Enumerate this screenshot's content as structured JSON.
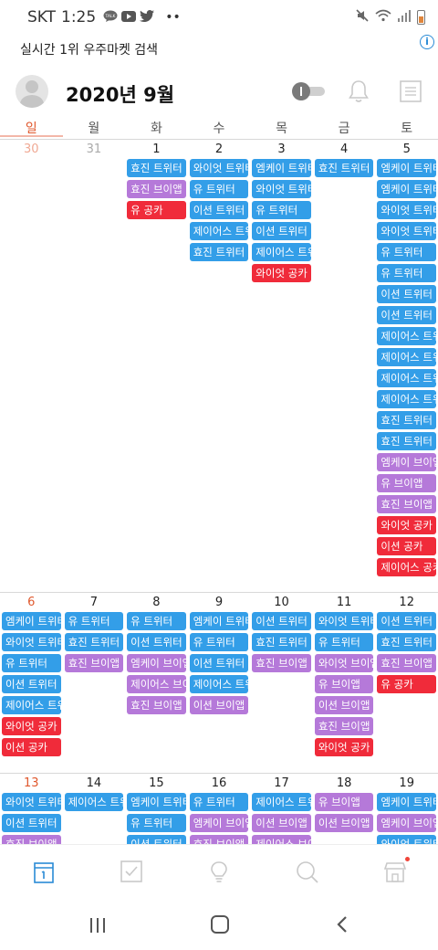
{
  "status_bar": {
    "carrier": "SKT",
    "time": "1:25",
    "talk_label": "TALK"
  },
  "banner": {
    "text": "실시간 1위 우주마켓 검색",
    "info_label": "i"
  },
  "header": {
    "month_title": "2020년 9월",
    "chevron": "⌄"
  },
  "weekdays": [
    "일",
    "월",
    "화",
    "수",
    "목",
    "금",
    "토"
  ],
  "colors": {
    "blue": "#339ee8",
    "purple": "#b579d9",
    "red": "#f02b3a",
    "sunday": "#e0582d"
  },
  "weeks": [
    {
      "days": [
        {
          "num": "30",
          "muted": true,
          "events": []
        },
        {
          "num": "31",
          "muted": true,
          "events": []
        },
        {
          "num": "1",
          "events": [
            {
              "title": "효진 트위터",
              "color": "blue"
            },
            {
              "title": "효진 브이앱",
              "color": "purple"
            },
            {
              "title": "유 공카",
              "color": "red"
            }
          ]
        },
        {
          "num": "2",
          "events": [
            {
              "title": "와이엇 트위터",
              "color": "blue"
            },
            {
              "title": "유 트위터",
              "color": "blue"
            },
            {
              "title": "이션 트위터",
              "color": "blue"
            },
            {
              "title": "제이어스 트위터",
              "color": "blue"
            },
            {
              "title": "효진 트위터",
              "color": "blue"
            }
          ]
        },
        {
          "num": "3",
          "events": [
            {
              "title": "엠케이 트위터",
              "color": "blue"
            },
            {
              "title": "와이엇 트위터",
              "color": "blue"
            },
            {
              "title": "유 트위터",
              "color": "blue"
            },
            {
              "title": "이션 트위터",
              "color": "blue"
            },
            {
              "title": "제이어스 트위터",
              "color": "blue"
            },
            {
              "title": "와이엇 공카",
              "color": "red"
            }
          ]
        },
        {
          "num": "4",
          "events": [
            {
              "title": "효진 트위터",
              "color": "blue"
            }
          ]
        },
        {
          "num": "5",
          "events": [
            {
              "title": "엠케이 트위터",
              "color": "blue"
            },
            {
              "title": "엠케이 트위터",
              "color": "blue"
            },
            {
              "title": "와이엇 트위터",
              "color": "blue"
            },
            {
              "title": "와이엇 트위터",
              "color": "blue"
            },
            {
              "title": "유 트위터",
              "color": "blue"
            },
            {
              "title": "유 트위터",
              "color": "blue"
            },
            {
              "title": "이션 트위터",
              "color": "blue"
            },
            {
              "title": "이션 트위터",
              "color": "blue"
            },
            {
              "title": "제이어스 트위터",
              "color": "blue"
            },
            {
              "title": "제이어스 트위터",
              "color": "blue"
            },
            {
              "title": "제이어스 트위터",
              "color": "blue"
            },
            {
              "title": "제이어스 트위터",
              "color": "blue"
            },
            {
              "title": "효진 트위터",
              "color": "blue"
            },
            {
              "title": "효진 트위터",
              "color": "blue"
            },
            {
              "title": "엠케이 브이앱",
              "color": "purple"
            },
            {
              "title": "유 브이앱",
              "color": "purple"
            },
            {
              "title": "효진 브이앱",
              "color": "purple"
            },
            {
              "title": "와이엇 공카",
              "color": "red"
            },
            {
              "title": "이션 공카",
              "color": "red"
            },
            {
              "title": "제이어스 공카",
              "color": "red"
            }
          ]
        }
      ]
    },
    {
      "days": [
        {
          "num": "6",
          "sunday": true,
          "events": [
            {
              "title": "엠케이 트위터",
              "color": "blue"
            },
            {
              "title": "와이엇 트위터",
              "color": "blue"
            },
            {
              "title": "유 트위터",
              "color": "blue"
            },
            {
              "title": "이션 트위터",
              "color": "blue"
            },
            {
              "title": "제이어스 트위터",
              "color": "blue"
            },
            {
              "title": "와이엇 공카",
              "color": "red"
            },
            {
              "title": "이션 공카",
              "color": "red"
            }
          ]
        },
        {
          "num": "7",
          "events": [
            {
              "title": "유 트위터",
              "color": "blue"
            },
            {
              "title": "효진 트위터",
              "color": "blue"
            },
            {
              "title": "효진 브이앱",
              "color": "purple"
            }
          ]
        },
        {
          "num": "8",
          "events": [
            {
              "title": "유 트위터",
              "color": "blue"
            },
            {
              "title": "이션 트위터",
              "color": "blue"
            },
            {
              "title": "엠케이 브이앱",
              "color": "purple"
            },
            {
              "title": "제이어스 브이앱",
              "color": "purple"
            },
            {
              "title": "효진 브이앱",
              "color": "purple"
            }
          ]
        },
        {
          "num": "9",
          "events": [
            {
              "title": "엠케이 트위터",
              "color": "blue"
            },
            {
              "title": "유 트위터",
              "color": "blue"
            },
            {
              "title": "이션 트위터",
              "color": "blue"
            },
            {
              "title": "제이어스 트위터",
              "color": "blue"
            },
            {
              "title": "이션 브이앱",
              "color": "purple"
            }
          ]
        },
        {
          "num": "10",
          "events": [
            {
              "title": "이션 트위터",
              "color": "blue"
            },
            {
              "title": "효진 트위터",
              "color": "blue"
            },
            {
              "title": "효진 브이앱",
              "color": "purple"
            }
          ]
        },
        {
          "num": "11",
          "events": [
            {
              "title": "와이엇 트위터",
              "color": "blue"
            },
            {
              "title": "유 트위터",
              "color": "blue"
            },
            {
              "title": "와이엇 브이앱",
              "color": "purple"
            },
            {
              "title": "유 브이앱",
              "color": "purple"
            },
            {
              "title": "이션 브이앱",
              "color": "purple"
            },
            {
              "title": "효진 브이앱",
              "color": "purple"
            },
            {
              "title": "와이엇 공카",
              "color": "red"
            }
          ]
        },
        {
          "num": "12",
          "events": [
            {
              "title": "이션 트위터",
              "color": "blue"
            },
            {
              "title": "효진 트위터",
              "color": "blue"
            },
            {
              "title": "효진 브이앱",
              "color": "purple"
            },
            {
              "title": "유 공카",
              "color": "red"
            }
          ]
        }
      ]
    },
    {
      "days": [
        {
          "num": "13",
          "sunday": true,
          "events": [
            {
              "title": "와이엇 트위터",
              "color": "blue"
            },
            {
              "title": "이션 트위터",
              "color": "blue"
            },
            {
              "title": "효진 브이앱",
              "color": "purple"
            }
          ]
        },
        {
          "num": "14",
          "events": [
            {
              "title": "제이어스 트위터",
              "color": "blue"
            }
          ]
        },
        {
          "num": "15",
          "events": [
            {
              "title": "엠케이 트위터",
              "color": "blue"
            },
            {
              "title": "유 트위터",
              "color": "blue"
            },
            {
              "title": "이션 트위터",
              "color": "blue"
            }
          ]
        },
        {
          "num": "16",
          "events": [
            {
              "title": "유 트위터",
              "color": "blue"
            },
            {
              "title": "엠케이 브이앱",
              "color": "purple"
            },
            {
              "title": "효진 브이앱",
              "color": "purple"
            }
          ]
        },
        {
          "num": "17",
          "events": [
            {
              "title": "제이어스 트위터",
              "color": "blue"
            },
            {
              "title": "이션 브이앱",
              "color": "purple"
            },
            {
              "title": "제이어스 브이앱",
              "color": "purple"
            }
          ]
        },
        {
          "num": "18",
          "events": [
            {
              "title": "유 브이앱",
              "color": "purple"
            },
            {
              "title": "이션 브이앱",
              "color": "purple"
            }
          ]
        },
        {
          "num": "19",
          "events": [
            {
              "title": "엠케이 트위터",
              "color": "blue"
            },
            {
              "title": "엠케이 브이앱",
              "color": "purple"
            },
            {
              "title": "와이엇 트위터",
              "color": "blue"
            }
          ]
        }
      ]
    }
  ]
}
